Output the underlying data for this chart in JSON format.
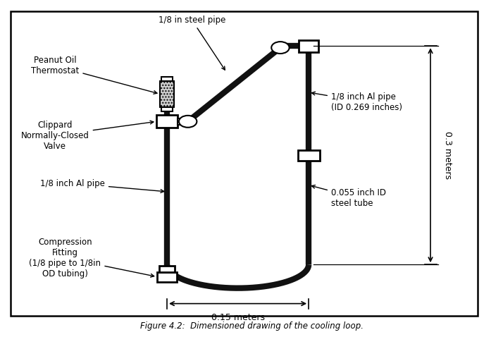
{
  "title": "Figure 4.2:  Dimensioned drawing of the cooling loop.",
  "labels": {
    "steel_pipe": "1/8 in steel pipe",
    "peanut_oil": "Peanut Oil\nThermostat",
    "clippard": "Clippard\nNormally-Closed\nValve",
    "al_pipe_left": "1/8 inch Al pipe",
    "al_pipe_right": "1/8 inch Al pipe\n(ID 0.269 inches)",
    "compression": "Compression\nFitting\n(1/8 pipe to 1/8in\nOD tubing)",
    "steel_tube": "0.055 inch ID\nsteel tube",
    "dim_horiz": "0.15 meters",
    "dim_vert": "0.3 meters"
  },
  "pipe_lw": 6,
  "pipe_color": "#111111",
  "fitting_color": "#ffffff"
}
